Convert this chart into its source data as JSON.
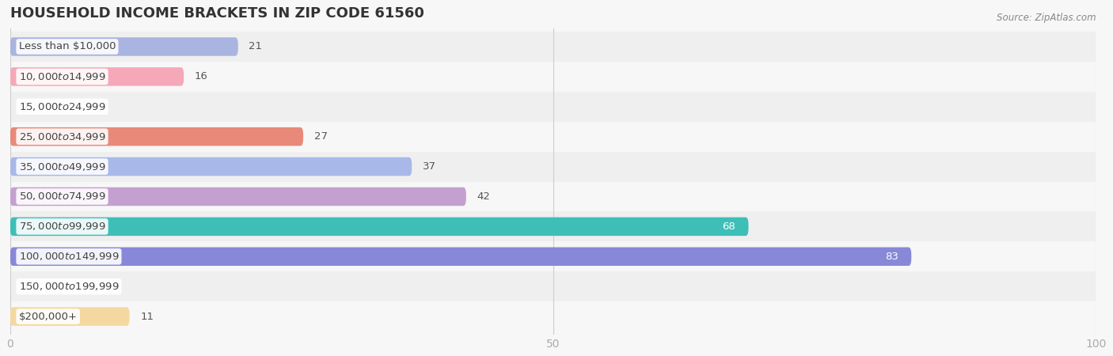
{
  "title": "HOUSEHOLD INCOME BRACKETS IN ZIP CODE 61560",
  "source": "Source: ZipAtlas.com",
  "categories": [
    "Less than $10,000",
    "$10,000 to $14,999",
    "$15,000 to $24,999",
    "$25,000 to $34,999",
    "$35,000 to $49,999",
    "$50,000 to $74,999",
    "$75,000 to $99,999",
    "$100,000 to $149,999",
    "$150,000 to $199,999",
    "$200,000+"
  ],
  "values": [
    21,
    16,
    0,
    27,
    37,
    42,
    68,
    83,
    0,
    11
  ],
  "bar_colors": [
    "#aab4e0",
    "#f5a8b8",
    "#f5c98a",
    "#e8897a",
    "#a8b8e8",
    "#c4a0d0",
    "#3dbfb8",
    "#8888d8",
    "#f5a0b0",
    "#f5d8a0"
  ],
  "value_label_colors": [
    "#888888",
    "#888888",
    "#888888",
    "#888888",
    "#888888",
    "#888888",
    "#ffffff",
    "#ffffff",
    "#888888",
    "#888888"
  ],
  "xlim": [
    0,
    100
  ],
  "bar_height": 0.62,
  "background_color": "#f7f7f7",
  "row_bg_colors": [
    "#efefef",
    "#f7f7f7"
  ],
  "title_fontsize": 13,
  "label_fontsize": 9.5,
  "tick_fontsize": 10
}
